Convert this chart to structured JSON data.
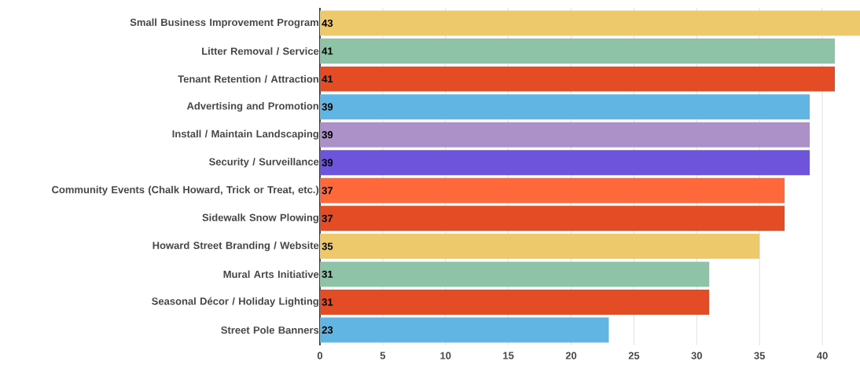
{
  "chart_data": {
    "type": "bar",
    "orientation": "horizontal",
    "categories": [
      "Small Business Improvement Program",
      "Litter Removal / Service",
      "Tenant Retention / Attraction",
      "Advertising and Promotion",
      "Install / Maintain Landscaping",
      "Security / Surveillance",
      "Community Events (Chalk Howard, Trick or Treat, etc.)",
      "Sidewalk Snow Plowing",
      "Howard Street Branding / Website",
      "Mural Arts Initiative",
      "Seasonal Décor / Holiday Lighting",
      "Street Pole Banners"
    ],
    "values": [
      43,
      41,
      41,
      39,
      39,
      39,
      37,
      37,
      35,
      31,
      31,
      23
    ],
    "colors": [
      "#eec96b",
      "#8fc3a8",
      "#e34c24",
      "#60b5e3",
      "#ab91c7",
      "#6e54db",
      "#fe683a",
      "#e34c24",
      "#eec96b",
      "#8fc3a8",
      "#e34c24",
      "#60b5e3"
    ],
    "xlim": [
      0,
      43
    ],
    "xticks": [
      0,
      5,
      10,
      15,
      20,
      25,
      30,
      35,
      40
    ],
    "grid": "x",
    "data_labels": true
  }
}
